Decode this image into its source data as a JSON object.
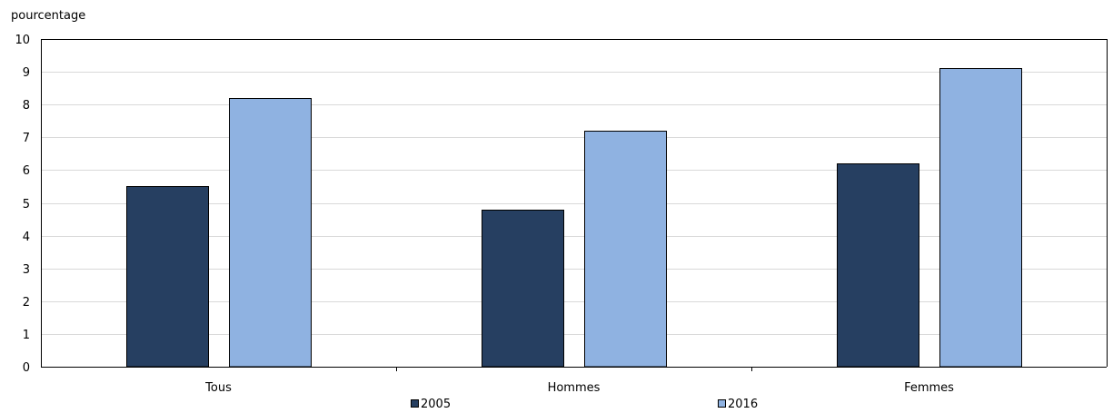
{
  "chart_data": {
    "type": "bar",
    "title": "",
    "ylabel": "pourcentage",
    "xlabel": "",
    "ylim": [
      0,
      10
    ],
    "yticks": [
      0,
      1,
      2,
      3,
      4,
      5,
      6,
      7,
      8,
      9,
      10
    ],
    "grid": true,
    "legend_position": "bottom",
    "categories": [
      "Tous",
      "Hommes",
      "Femmes"
    ],
    "series": [
      {
        "name": "2005",
        "color": "#263f61",
        "values": [
          5.5,
          4.8,
          6.2
        ]
      },
      {
        "name": "2016",
        "color": "#8fb2e1",
        "values": [
          8.2,
          7.2,
          9.1
        ]
      }
    ]
  }
}
